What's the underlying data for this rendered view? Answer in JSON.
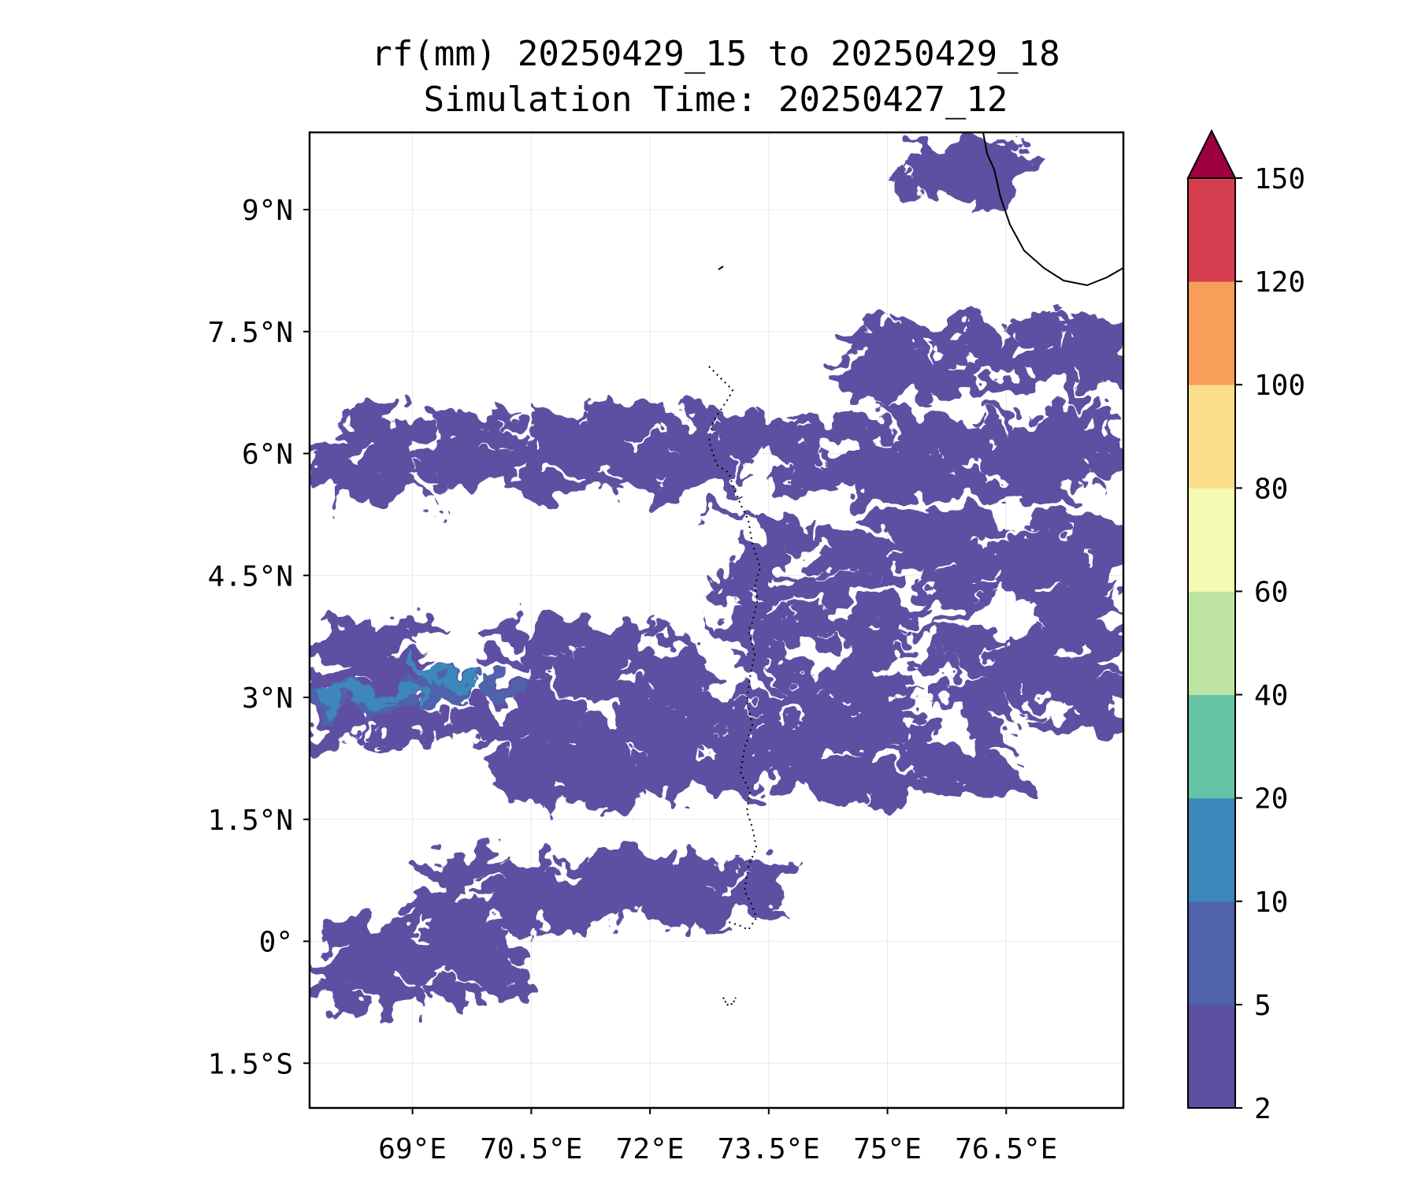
{
  "title": {
    "line1": "rf(mm) 20250429_15 to 20250429_18",
    "line2": "Simulation Time: 20250427_12"
  },
  "map": {
    "lon_range": [
      67.7,
      77.98
    ],
    "lat_range": [
      -2.05,
      9.95
    ],
    "lon_ticks": [
      {
        "value": 69,
        "label": "69°E"
      },
      {
        "value": 70.5,
        "label": "70.5°E"
      },
      {
        "value": 72,
        "label": "72°E"
      },
      {
        "value": 73.5,
        "label": "73.5°E"
      },
      {
        "value": 75,
        "label": "75°E"
      },
      {
        "value": 76.5,
        "label": "76.5°E"
      }
    ],
    "lat_ticks": [
      {
        "value": 9,
        "label": "9°N"
      },
      {
        "value": 7.5,
        "label": "7.5°N"
      },
      {
        "value": 6,
        "label": "6°N"
      },
      {
        "value": 4.5,
        "label": "4.5°N"
      },
      {
        "value": 3,
        "label": "3°N"
      },
      {
        "value": 1.5,
        "label": "1.5°N"
      },
      {
        "value": 0,
        "label": "0°"
      },
      {
        "value": -1.5,
        "label": "1.5°S"
      }
    ],
    "grid": true,
    "rain_bands": [
      {
        "lat": 6.0,
        "lon_start": 67.8,
        "lon_end": 77.9,
        "width": 0.9,
        "level": 0
      },
      {
        "lat": 4.6,
        "lon_start": 73.0,
        "lon_end": 77.9,
        "width": 1.2,
        "level": 0
      },
      {
        "lat": 3.2,
        "lon_start": 67.8,
        "lon_end": 77.9,
        "width": 1.4,
        "level": 0
      },
      {
        "lat": 2.2,
        "lon_start": 70.0,
        "lon_end": 76.5,
        "width": 0.8,
        "level": 0
      },
      {
        "lat": 0.6,
        "lon_start": 69.2,
        "lon_end": 73.6,
        "width": 0.8,
        "level": 0
      },
      {
        "lat": -0.3,
        "lon_start": 67.8,
        "lon_end": 70.2,
        "width": 0.9,
        "level": 0
      },
      {
        "lat": 7.2,
        "lon_start": 74.5,
        "lon_end": 77.9,
        "width": 0.8,
        "level": 0
      },
      {
        "lat": 9.5,
        "lon_start": 75.2,
        "lon_end": 76.6,
        "width": 0.7,
        "level": 0
      },
      {
        "lat": 3.2,
        "lon_start": 68.9,
        "lon_end": 70.3,
        "width": 0.35,
        "level": 1
      },
      {
        "lat": 2.95,
        "lon_start": 67.8,
        "lon_end": 69.3,
        "width": 0.3,
        "level": 1
      },
      {
        "lat": 3.0,
        "lon_start": 68.1,
        "lon_end": 69.1,
        "width": 0.12,
        "level": 2
      },
      {
        "lat": 3.3,
        "lon_start": 69.1,
        "lon_end": 69.7,
        "width": 0.1,
        "level": 2
      }
    ]
  },
  "colorbar": {
    "levels": [
      2,
      5,
      10,
      20,
      40,
      60,
      80,
      100,
      120,
      150
    ],
    "colors": [
      "#5e4fa2",
      "#4f62ab",
      "#3c87bc",
      "#66c2a5",
      "#bce3a0",
      "#f3fab1",
      "#fcdd8b",
      "#f99e5a",
      "#d53e4f"
    ],
    "extend_color": "#9e0142",
    "tick_labels": [
      "2",
      "5",
      "10",
      "20",
      "40",
      "60",
      "80",
      "100",
      "120",
      "150"
    ]
  },
  "colors": {
    "grid": "#e8e8e8",
    "coast": "#000000"
  }
}
